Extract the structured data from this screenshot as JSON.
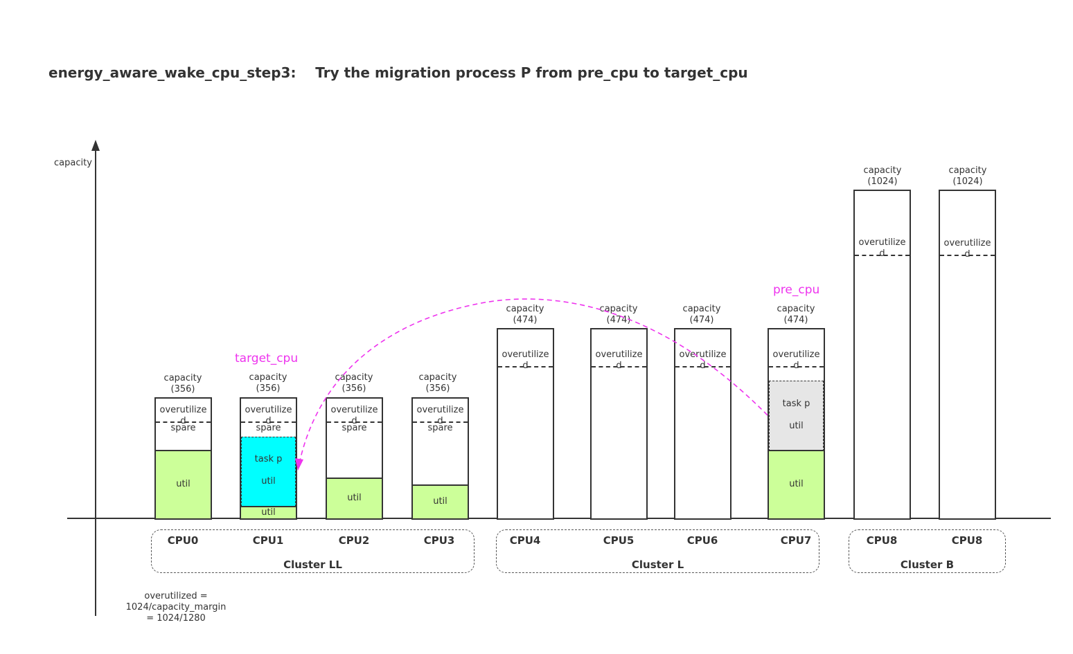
{
  "title": "energy_aware_wake_cpu_step3:    Try the migration process P from pre_cpu to target_cpu",
  "axis_label": "capacity",
  "target_label": "target_cpu",
  "pre_label": "pre_cpu",
  "overutil_text": "overutilize\nd",
  "spare_text": "spare",
  "util_text": "util",
  "task_text": "task p",
  "cap_356": "capacity\n(356)",
  "cap_474": "capacity\n(474)",
  "cap_1024": "capacity\n(1024)",
  "cpus": [
    "CPU0",
    "CPU1",
    "CPU2",
    "CPU3",
    "CPU4",
    "CPU5",
    "CPU6",
    "CPU7",
    "CPU8",
    "CPU8"
  ],
  "clusters": [
    "Cluster LL",
    "Cluster L",
    "Cluster B"
  ],
  "note": "overutilized =\n1024/capacity_margin\n= 1024/1280",
  "colors": {
    "util": "#ccff99",
    "task_target": "#00ffff",
    "task_pre": "#e6e6e6",
    "accent": "#ee33ee"
  }
}
